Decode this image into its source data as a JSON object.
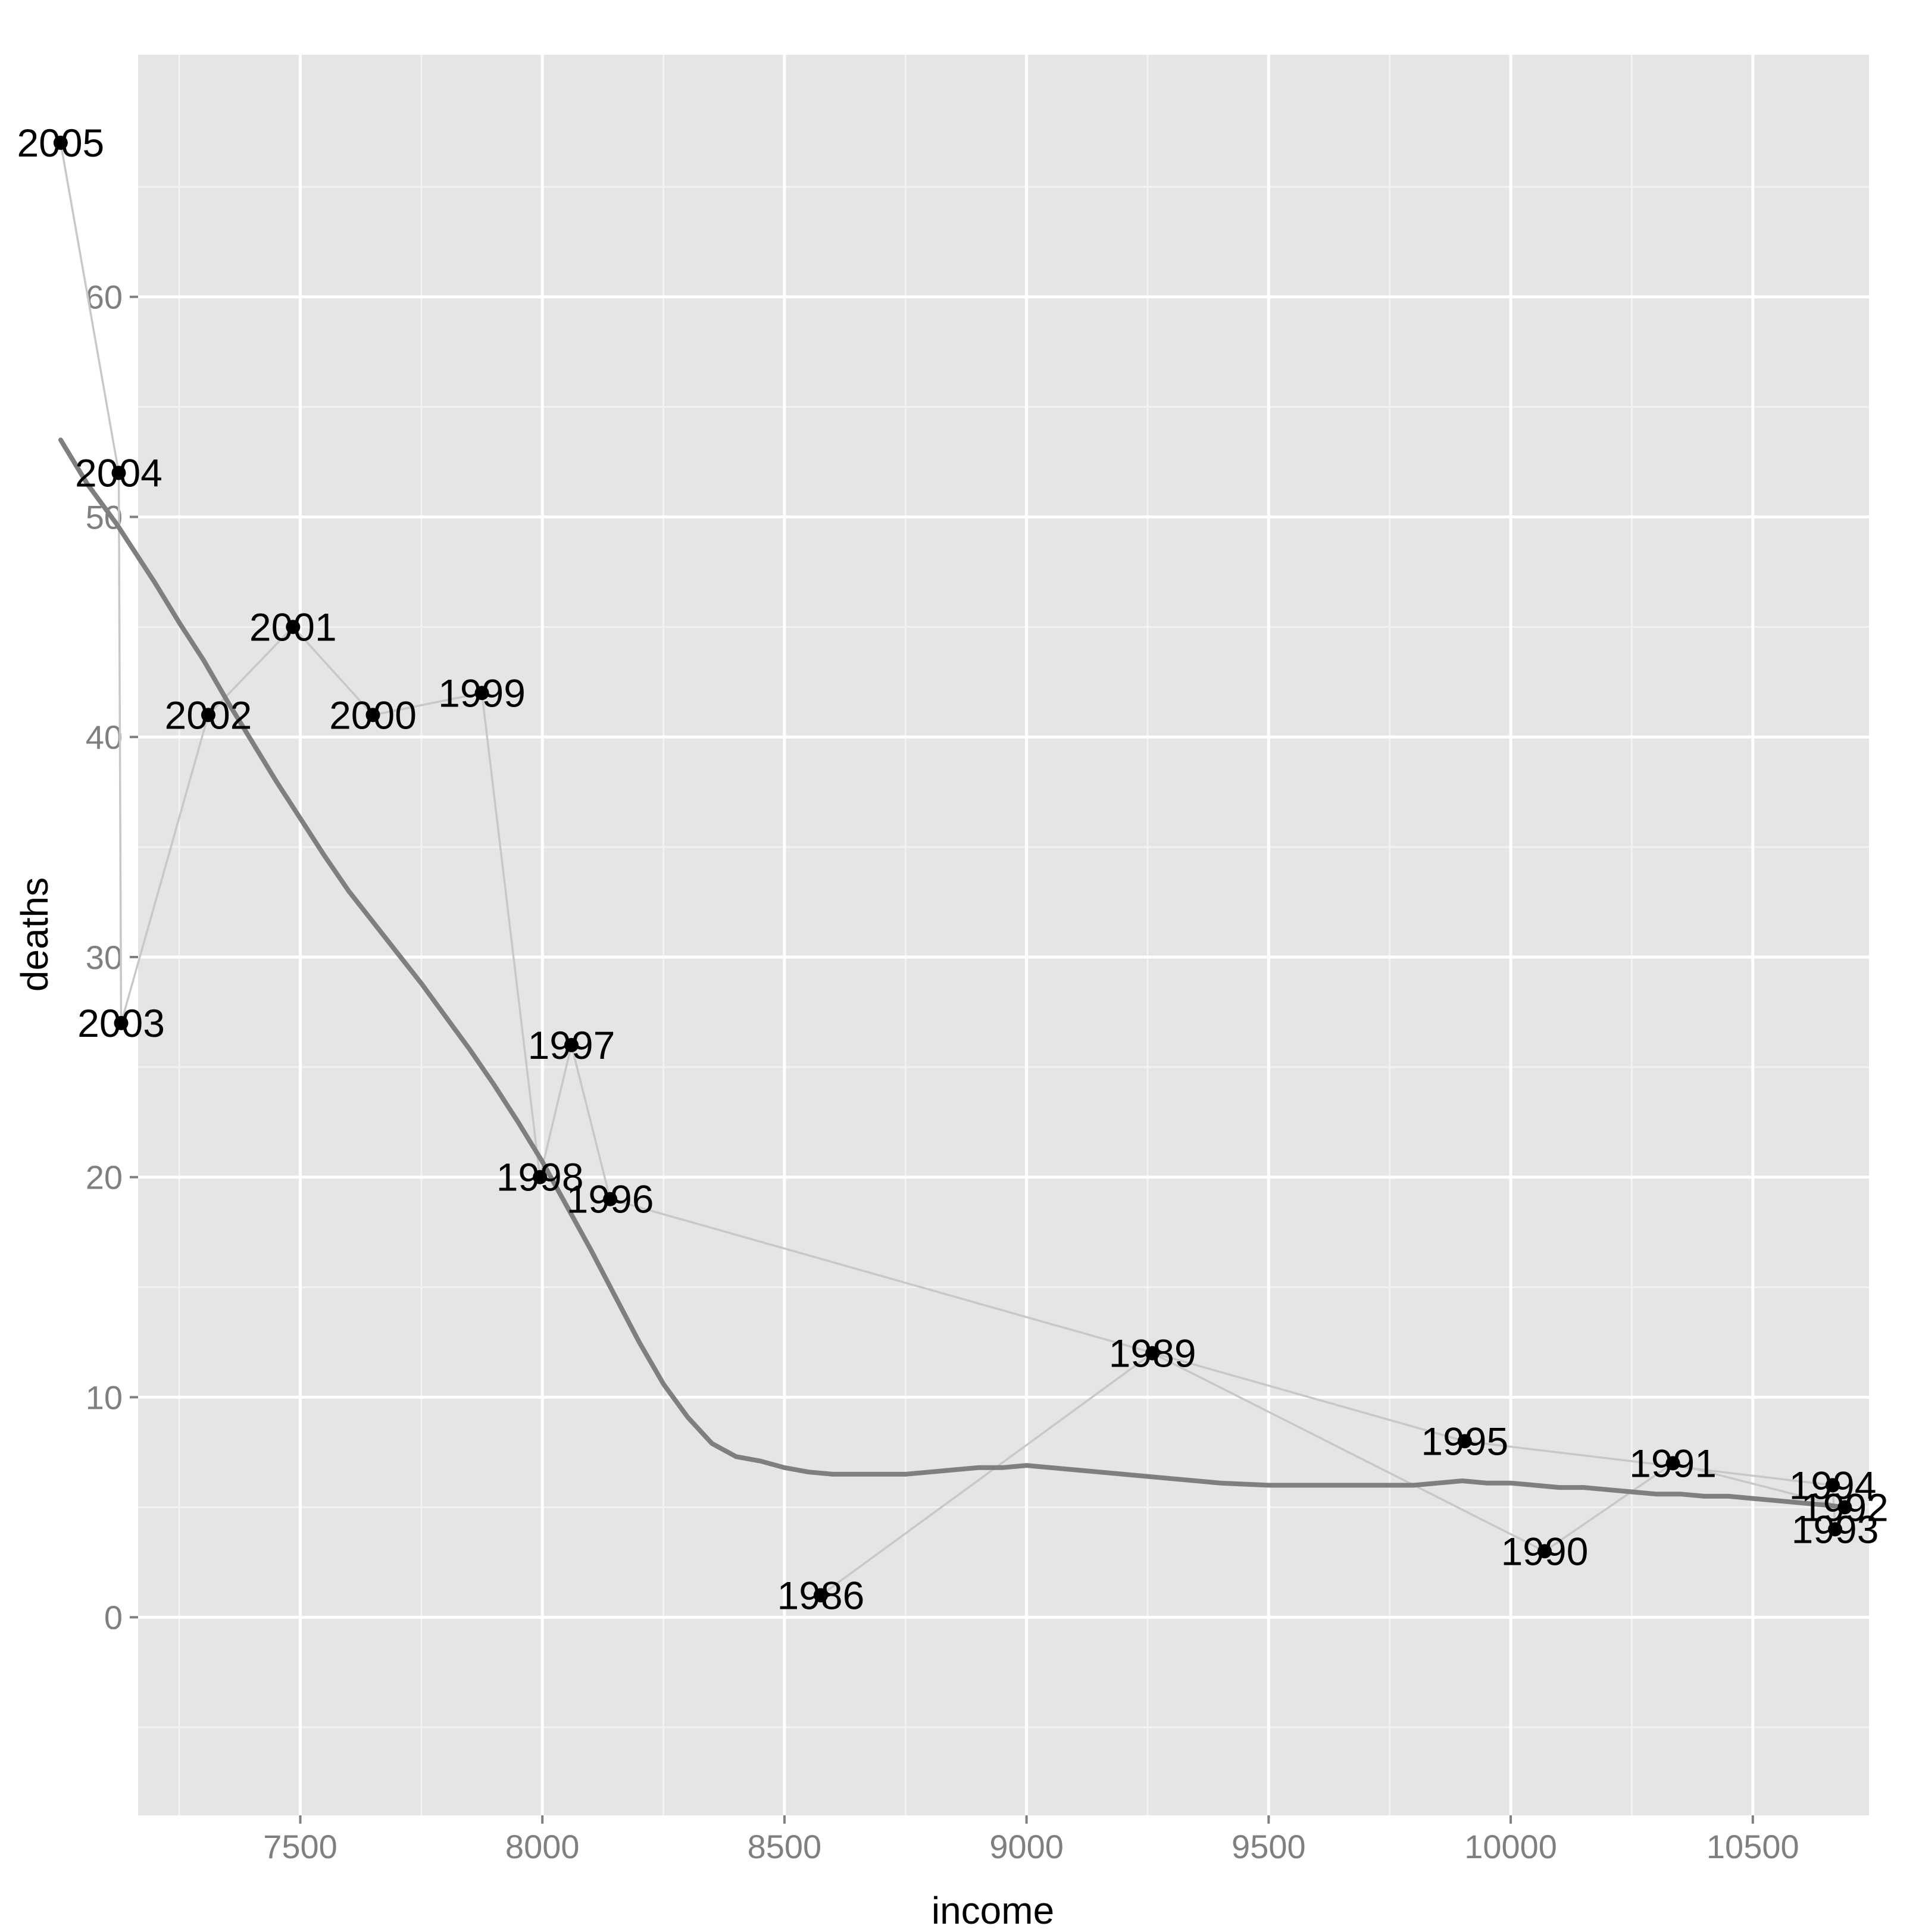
{
  "chart_data": {
    "type": "scatter",
    "xlabel": "income",
    "ylabel": "deaths",
    "xlim": [
      7165,
      10740
    ],
    "ylim": [
      -9,
      71
    ],
    "x_ticks": [
      7500,
      8000,
      8500,
      9000,
      9500,
      10000,
      10500
    ],
    "y_ticks": [
      0,
      10,
      20,
      30,
      40,
      50,
      60
    ],
    "x_tick_labels": [
      "7500",
      "8000",
      "8500",
      "9000",
      "9500",
      "10000",
      "10500"
    ],
    "y_tick_labels": [
      "0",
      "10",
      "20",
      "30",
      "40",
      "50",
      "60"
    ],
    "grid": true,
    "background": "#e5e5e5",
    "points": [
      {
        "label": "1986",
        "x": 8575,
        "y": 1
      },
      {
        "label": "1989",
        "x": 9260,
        "y": 12
      },
      {
        "label": "1990",
        "x": 10070,
        "y": 3
      },
      {
        "label": "1991",
        "x": 10335,
        "y": 7
      },
      {
        "label": "1992",
        "x": 10690,
        "y": 5
      },
      {
        "label": "1993",
        "x": 10670,
        "y": 4
      },
      {
        "label": "1994",
        "x": 10665,
        "y": 6
      },
      {
        "label": "1995",
        "x": 9905,
        "y": 8
      },
      {
        "label": "1996",
        "x": 8140,
        "y": 19
      },
      {
        "label": "1997",
        "x": 8060,
        "y": 26
      },
      {
        "label": "1998",
        "x": 7995,
        "y": 20
      },
      {
        "label": "1999",
        "x": 7875,
        "y": 42
      },
      {
        "label": "2000",
        "x": 7650,
        "y": 41
      },
      {
        "label": "2001",
        "x": 7485,
        "y": 45
      },
      {
        "label": "2002",
        "x": 7310,
        "y": 41
      },
      {
        "label": "2003",
        "x": 7130,
        "y": 27
      },
      {
        "label": "2004",
        "x": 7125,
        "y": 52
      },
      {
        "label": "2005",
        "x": 7005,
        "y": 67
      }
    ],
    "path_order": [
      "1986",
      "1989",
      "1990",
      "1991",
      "1992",
      "1993",
      "1994",
      "1995",
      "1996",
      "1997",
      "1998",
      "1999",
      "2000",
      "2001",
      "2002",
      "2003",
      "2004",
      "2005"
    ],
    "smooth_line": {
      "x": [
        7005,
        7060,
        7120,
        7200,
        7250,
        7300,
        7350,
        7400,
        7450,
        7500,
        7550,
        7600,
        7650,
        7700,
        7750,
        7800,
        7850,
        7900,
        7950,
        8000,
        8050,
        8100,
        8150,
        8200,
        8250,
        8300,
        8350,
        8400,
        8450,
        8500,
        8550,
        8600,
        8650,
        8700,
        8750,
        8800,
        8850,
        8900,
        8950,
        9000,
        9050,
        9100,
        9150,
        9200,
        9300,
        9400,
        9500,
        9600,
        9700,
        9800,
        9850,
        9900,
        9950,
        10000,
        10050,
        10100,
        10150,
        10200,
        10250,
        10300,
        10350,
        10400,
        10450,
        10500,
        10550,
        10600,
        10650,
        10690
      ],
      "y": [
        53.5,
        51.5,
        49.7,
        47.0,
        45.2,
        43.5,
        41.6,
        39.8,
        38.0,
        36.3,
        34.6,
        33.0,
        31.6,
        30.2,
        28.8,
        27.3,
        25.8,
        24.2,
        22.5,
        20.7,
        18.7,
        16.7,
        14.6,
        12.5,
        10.6,
        9.1,
        7.9,
        7.3,
        7.1,
        6.8,
        6.6,
        6.5,
        6.5,
        6.5,
        6.5,
        6.6,
        6.7,
        6.8,
        6.8,
        6.9,
        6.8,
        6.7,
        6.6,
        6.5,
        6.3,
        6.1,
        6.0,
        6.0,
        6.0,
        6.0,
        6.1,
        6.2,
        6.1,
        6.1,
        6.0,
        5.9,
        5.9,
        5.8,
        5.7,
        5.6,
        5.6,
        5.5,
        5.5,
        5.4,
        5.3,
        5.2,
        5.1,
        5.0
      ]
    },
    "colors": {
      "panel": "#e5e5e5",
      "grid_major": "#ffffff",
      "grid_minor": "#f2f2f2",
      "path": "#c8c8c8",
      "smooth": "#7f7f7f",
      "point": "#000000",
      "tick_text": "#7f7f7f"
    }
  }
}
